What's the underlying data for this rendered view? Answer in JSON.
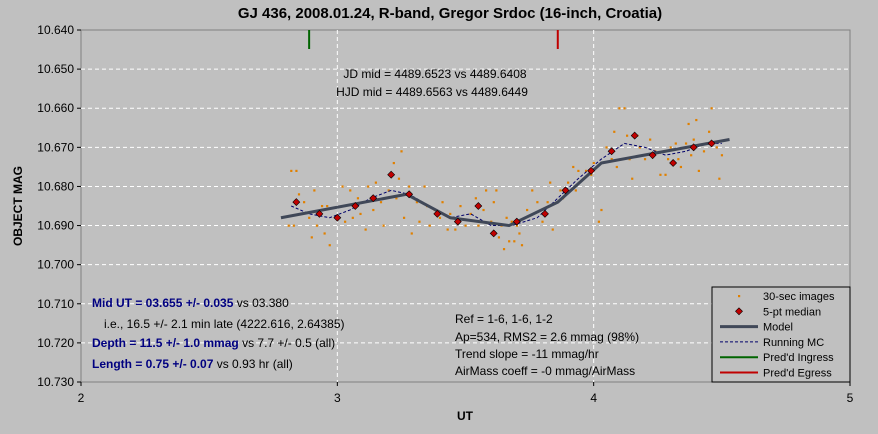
{
  "chart_data": {
    "type": "scatter",
    "title": "GJ 436, 2008.01.24, R-band, Gregor Srdoc (16-inch, Croatia)",
    "xlabel": "UT",
    "ylabel": "OBJECT MAG",
    "xlim": [
      2,
      5
    ],
    "ylim": [
      10.64,
      10.73
    ],
    "y_inverted": true,
    "grid": true,
    "x_ticks": [
      "2",
      "3",
      "4",
      "5"
    ],
    "y_ticks": [
      "10.640",
      "10.650",
      "10.660",
      "10.670",
      "10.680",
      "10.690",
      "10.700",
      "10.710",
      "10.720",
      "10.730"
    ],
    "legend_position": "bottom-right",
    "series": [
      {
        "name": "30-sec images",
        "style": "dots",
        "color": "#e08000",
        "points": [
          [
            2.81,
            10.69
          ],
          [
            2.82,
            10.676
          ],
          [
            2.84,
            10.676
          ],
          [
            2.83,
            10.69
          ],
          [
            2.85,
            10.682
          ],
          [
            2.87,
            10.684
          ],
          [
            2.89,
            10.688
          ],
          [
            2.9,
            10.693
          ],
          [
            2.91,
            10.681
          ],
          [
            2.92,
            10.69
          ],
          [
            2.94,
            10.685
          ],
          [
            2.95,
            10.692
          ],
          [
            2.96,
            10.685
          ],
          [
            2.97,
            10.695
          ],
          [
            3.0,
            10.688
          ],
          [
            3.02,
            10.68
          ],
          [
            3.03,
            10.689
          ],
          [
            3.05,
            10.681
          ],
          [
            3.06,
            10.688
          ],
          [
            3.08,
            10.683
          ],
          [
            3.09,
            10.687
          ],
          [
            3.11,
            10.691
          ],
          [
            3.12,
            10.68
          ],
          [
            3.14,
            10.686
          ],
          [
            3.15,
            10.679
          ],
          [
            3.17,
            10.684
          ],
          [
            3.18,
            10.69
          ],
          [
            3.2,
            10.681
          ],
          [
            3.22,
            10.674
          ],
          [
            3.23,
            10.683
          ],
          [
            3.24,
            10.678
          ],
          [
            3.25,
            10.671
          ],
          [
            3.26,
            10.688
          ],
          [
            3.28,
            10.68
          ],
          [
            3.29,
            10.692
          ],
          [
            3.31,
            10.684
          ],
          [
            3.32,
            10.689
          ],
          [
            3.34,
            10.68
          ],
          [
            3.35,
            10.685
          ],
          [
            3.36,
            10.69
          ],
          [
            3.38,
            10.686
          ],
          [
            3.4,
            10.688
          ],
          [
            3.41,
            10.684
          ],
          [
            3.43,
            10.691
          ],
          [
            3.44,
            10.687
          ],
          [
            3.46,
            10.691
          ],
          [
            3.48,
            10.685
          ],
          [
            3.5,
            10.69
          ],
          [
            3.52,
            10.687
          ],
          [
            3.54,
            10.683
          ],
          [
            3.55,
            10.69
          ],
          [
            3.57,
            10.686
          ],
          [
            3.58,
            10.681
          ],
          [
            3.6,
            10.689
          ],
          [
            3.61,
            10.684
          ],
          [
            3.62,
            10.681
          ],
          [
            3.63,
            10.693
          ],
          [
            3.64,
            10.69
          ],
          [
            3.65,
            10.696
          ],
          [
            3.66,
            10.688
          ],
          [
            3.67,
            10.694
          ],
          [
            3.68,
            10.689
          ],
          [
            3.69,
            10.694
          ],
          [
            3.7,
            10.69
          ],
          [
            3.71,
            10.692
          ],
          [
            3.72,
            10.695
          ],
          [
            3.74,
            10.686
          ],
          [
            3.76,
            10.681
          ],
          [
            3.78,
            10.684
          ],
          [
            3.8,
            10.689
          ],
          [
            3.82,
            10.684
          ],
          [
            3.83,
            10.679
          ],
          [
            3.84,
            10.691
          ],
          [
            3.87,
            10.681
          ],
          [
            3.88,
            10.683
          ],
          [
            3.9,
            10.679
          ],
          [
            3.92,
            10.675
          ],
          [
            3.93,
            10.681
          ],
          [
            3.94,
            10.676
          ],
          [
            3.96,
            10.678
          ],
          [
            3.97,
            10.676
          ],
          [
            3.99,
            10.677
          ],
          [
            4.0,
            10.674
          ],
          [
            4.02,
            10.689
          ],
          [
            4.03,
            10.686
          ],
          [
            4.05,
            10.67
          ],
          [
            4.07,
            10.673
          ],
          [
            4.08,
            10.666
          ],
          [
            4.09,
            10.675
          ],
          [
            4.1,
            10.66
          ],
          [
            4.12,
            10.66
          ],
          [
            4.13,
            10.667
          ],
          [
            4.14,
            10.673
          ],
          [
            4.15,
            10.678
          ],
          [
            4.17,
            10.667
          ],
          [
            4.18,
            10.67
          ],
          [
            4.2,
            10.673
          ],
          [
            4.22,
            10.668
          ],
          [
            4.24,
            10.671
          ],
          [
            4.26,
            10.677
          ],
          [
            4.28,
            10.677
          ],
          [
            4.29,
            10.673
          ],
          [
            4.3,
            10.67
          ],
          [
            4.32,
            10.669
          ],
          [
            4.33,
            10.673
          ],
          [
            4.34,
            10.675
          ],
          [
            4.36,
            10.669
          ],
          [
            4.37,
            10.664
          ],
          [
            4.38,
            10.672
          ],
          [
            4.39,
            10.668
          ],
          [
            4.4,
            10.663
          ],
          [
            4.41,
            10.676
          ],
          [
            4.43,
            10.671
          ],
          [
            4.44,
            10.669
          ],
          [
            4.45,
            10.666
          ],
          [
            4.46,
            10.66
          ],
          [
            4.48,
            10.67
          ],
          [
            4.49,
            10.678
          ],
          [
            4.5,
            10.672
          ]
        ]
      },
      {
        "name": "5-pt median",
        "style": "diamonds",
        "color": "#c00000",
        "points": [
          [
            2.84,
            10.684
          ],
          [
            2.93,
            10.687
          ],
          [
            3.0,
            10.688
          ],
          [
            3.07,
            10.685
          ],
          [
            3.14,
            10.683
          ],
          [
            3.21,
            10.677
          ],
          [
            3.28,
            10.682
          ],
          [
            3.39,
            10.687
          ],
          [
            3.47,
            10.689
          ],
          [
            3.55,
            10.685
          ],
          [
            3.61,
            10.692
          ],
          [
            3.7,
            10.689
          ],
          [
            3.81,
            10.687
          ],
          [
            3.89,
            10.681
          ],
          [
            3.99,
            10.676
          ],
          [
            4.07,
            10.671
          ],
          [
            4.16,
            10.667
          ],
          [
            4.23,
            10.672
          ],
          [
            4.31,
            10.674
          ],
          [
            4.39,
            10.67
          ],
          [
            4.46,
            10.669
          ]
        ]
      },
      {
        "name": "Model",
        "style": "thick-line",
        "color": "#404858",
        "points": [
          [
            2.78,
            10.688
          ],
          [
            3.27,
            10.682
          ],
          [
            3.44,
            10.688
          ],
          [
            3.67,
            10.69
          ],
          [
            3.86,
            10.684
          ],
          [
            4.03,
            10.674
          ],
          [
            4.53,
            10.668
          ]
        ]
      },
      {
        "name": "Running MC",
        "style": "dashed-line",
        "color": "#00006a",
        "points": [
          [
            2.82,
            10.685
          ],
          [
            2.89,
            10.687
          ],
          [
            2.97,
            10.688
          ],
          [
            3.05,
            10.686
          ],
          [
            3.13,
            10.683
          ],
          [
            3.21,
            10.681
          ],
          [
            3.28,
            10.682
          ],
          [
            3.36,
            10.685
          ],
          [
            3.44,
            10.688
          ],
          [
            3.52,
            10.687
          ],
          [
            3.6,
            10.69
          ],
          [
            3.68,
            10.69
          ],
          [
            3.78,
            10.688
          ],
          [
            3.86,
            10.683
          ],
          [
            3.94,
            10.678
          ],
          [
            4.03,
            10.673
          ],
          [
            4.12,
            10.669
          ],
          [
            4.2,
            10.67
          ],
          [
            4.28,
            10.672
          ],
          [
            4.36,
            10.671
          ],
          [
            4.44,
            10.669
          ],
          [
            4.5,
            10.669
          ]
        ]
      },
      {
        "name": "Pred'd Ingress",
        "style": "marker",
        "color": "#006400",
        "x": 2.89
      },
      {
        "name": "Pred'd Egress",
        "style": "marker",
        "color": "#c00000",
        "x": 3.86
      }
    ]
  },
  "annotations": {
    "jd_mid": "JD mid = 4489.6523 vs 4489.6408",
    "hjd_mid": "HJD mid = 4489.6563 vs 4489.6449",
    "mid_ut_bold": "Mid UT = 03.655 +/- 0.035",
    "mid_ut_rest": " vs 03.380",
    "late": "i.e., 16.5 +/- 2.1 min late (4222.616, 2.64385)",
    "depth_bold": "Depth = 11.5 +/- 1.0 mmag",
    "depth_rest": " vs 7.7 +/- 0.5 (all)",
    "length_bold": "Length = 0.75 +/- 0.07",
    "length_rest": " vs 0.93 hr (all)",
    "ref": "Ref = 1-6, 1-6, 1-2",
    "ap": "Ap=534, RMS2 = 2.6 mmag (98%)",
    "trend": "Trend slope = -11 mmag/hr",
    "airmass": "AirMass coeff = -0 mmag/AirMass"
  },
  "colors": {
    "page_bg": "#c0c0c0",
    "plot_bg": "#c0c0c0",
    "grid": "#ffffff",
    "label_blue": "#000080"
  }
}
